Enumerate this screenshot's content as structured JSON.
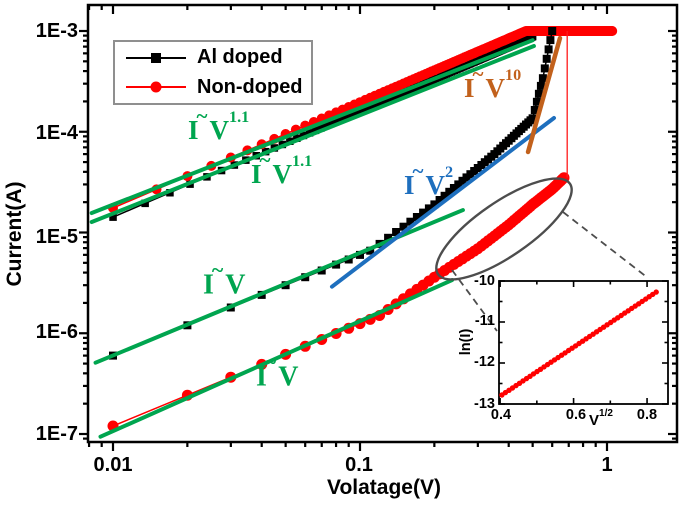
{
  "chart_data": {
    "type": "line",
    "title": "",
    "xlabel": "Volatage(V)",
    "ylabel": "Current(A)",
    "x_scale": "log",
    "y_scale": "log",
    "xlim": [
      0.0079,
      1.92
    ],
    "ylim": [
      8.3e-08,
      0.00181
    ],
    "grid": false,
    "x_ticks": [
      {
        "v": 0.01,
        "label": "0.01"
      },
      {
        "v": 0.1,
        "label": "0.1"
      },
      {
        "v": 1,
        "label": "1"
      }
    ],
    "y_ticks": [
      {
        "v": 0.001,
        "label": "1E-3"
      },
      {
        "v": 0.0001,
        "label": "1E-4"
      },
      {
        "v": 1e-05,
        "label": "1E-5"
      },
      {
        "v": 1e-06,
        "label": "1E-6"
      },
      {
        "v": 1e-07,
        "label": "1E-7"
      }
    ],
    "legend": {
      "border_color": "#8f8f8f",
      "items": [
        {
          "label": "Al doped",
          "color": "#000000",
          "marker": "square"
        },
        {
          "label": "Non-doped",
          "color": "#ff0000",
          "marker": "circle"
        }
      ]
    },
    "series": [
      {
        "name": "Al doped - high-resistance sweep (upper branch)",
        "color": "#000000",
        "marker": "square",
        "size": 7.5,
        "v_step": 0.0035,
        "points": [
          [
            0.01,
            1.42e-05
          ],
          [
            0.1,
            0.00016
          ],
          [
            0.5,
            0.00088
          ]
        ]
      },
      {
        "name": "Non-doped - upper branch + 1 mA compliance plateau",
        "color": "#ff0000",
        "marker": "circle",
        "size": 5,
        "v_step": 0.005,
        "points": [
          [
            0.01,
            1.75e-05
          ],
          [
            0.47,
            0.001
          ],
          [
            1.05,
            0.001
          ]
        ]
      },
      {
        "name": "Al doped - lower branch (V, V2, V10 regions)",
        "color": "#000000",
        "marker": "square",
        "size": 8,
        "v_step": 0.01,
        "points": [
          [
            0.01,
            6e-07
          ],
          [
            0.11,
            6.6e-06
          ],
          [
            0.2,
            1.9e-05
          ],
          [
            0.35,
            6e-05
          ],
          [
            0.5,
            0.000136
          ],
          [
            0.55,
            0.00034
          ],
          [
            0.6,
            0.001
          ]
        ]
      },
      {
        "name": "Non-doped - lower branch (ohmic then exp(V^1/2))",
        "color": "#ff0000",
        "marker": "circle",
        "size": 5.5,
        "v_step": 0.01,
        "points": [
          [
            0.01,
            1.2e-07
          ],
          [
            0.12,
            1.5e-06
          ],
          [
            0.2,
            3.6e-06
          ],
          [
            0.3,
            6.9e-06
          ],
          [
            0.4,
            1.19e-05
          ],
          [
            0.5,
            1.9e-05
          ],
          [
            0.6,
            2.7e-05
          ],
          [
            0.67,
            3.5e-05
          ]
        ]
      }
    ],
    "fit_lines": [
      {
        "label": "I~V1.1 fit, Non-doped upper",
        "color": "#00A54F",
        "width": 4,
        "points": [
          [
            0.0082,
            1.56e-05
          ],
          [
            0.5,
            0.00081
          ]
        ]
      },
      {
        "label": "I~V1.1 fit, Al doped upper",
        "color": "#00A54F",
        "width": 4,
        "points": [
          [
            0.0082,
            1.27e-05
          ],
          [
            0.506,
            0.00071
          ]
        ]
      },
      {
        "label": "I~V fit, Al doped lower",
        "color": "#00A54F",
        "width": 4,
        "points": [
          [
            0.0085,
            5.1e-07
          ],
          [
            0.261,
            1.67e-05
          ]
        ]
      },
      {
        "label": "I~V fit, Non-doped lower",
        "color": "#00A54F",
        "width": 4,
        "points": [
          [
            0.0089,
            9.4e-08
          ],
          [
            0.236,
            3.37e-06
          ]
        ]
      },
      {
        "label": "I~V2 fit",
        "color": "#1E6FBE",
        "width": 4,
        "points": [
          [
            0.077,
            2.9e-06
          ],
          [
            0.61,
            0.000137
          ]
        ]
      },
      {
        "label": "I~V10 fit",
        "color": "#C2611C",
        "width": 4.5,
        "points": [
          [
            0.479,
            6.3e-05
          ],
          [
            0.645,
            0.00085
          ]
        ]
      }
    ],
    "jump_line": {
      "color": "#ff1a1a",
      "v": 0.69,
      "i_from": 0.001,
      "i_to": 3.5e-05
    },
    "annotations": [
      {
        "base": "I",
        "tilde": "~",
        "var": "V",
        "exp": "1.1",
        "color": "#00A54F"
      },
      {
        "base": "I",
        "tilde": "~",
        "var": "V",
        "exp": "1.1",
        "color": "#00A54F"
      },
      {
        "base": "I",
        "tilde": "~",
        "var": "V",
        "exp": "2",
        "color": "#1E6FBE"
      },
      {
        "base": "I",
        "tilde": "~",
        "var": "V",
        "exp": "10",
        "color": "#C2611C"
      },
      {
        "base": "I",
        "tilde": "~",
        "var": "V",
        "exp": "",
        "color": "#00A54F"
      },
      {
        "base": "I",
        "tilde": "~",
        "var": "V",
        "exp": "",
        "color": "#00A54F"
      }
    ],
    "highlight": {
      "ellipse_color": "#4D4D4D",
      "dash_color": "#4D4D4D"
    },
    "inset": {
      "xlabel_base": "V",
      "xlabel_exp": "1/2",
      "ylabel": "ln(I)",
      "xlim": [
        0.397,
        0.857
      ],
      "ylim": [
        -13,
        -10
      ],
      "x_ticks": [
        {
          "v": 0.4,
          "label": "0.4"
        },
        {
          "v": 0.6,
          "label": "0.6"
        },
        {
          "v": 0.8,
          "label": "0.8"
        }
      ],
      "y_ticks": [
        {
          "v": -10,
          "label": "-10"
        },
        {
          "v": -11,
          "label": "-11"
        },
        {
          "v": -12,
          "label": "-12"
        },
        {
          "v": -13,
          "label": "-13"
        }
      ],
      "line": {
        "color": "#ff0000",
        "x_start": 0.405,
        "y_start": -12.78,
        "x_end": 0.825,
        "y_end": -10.27,
        "n_points": 45
      }
    }
  }
}
